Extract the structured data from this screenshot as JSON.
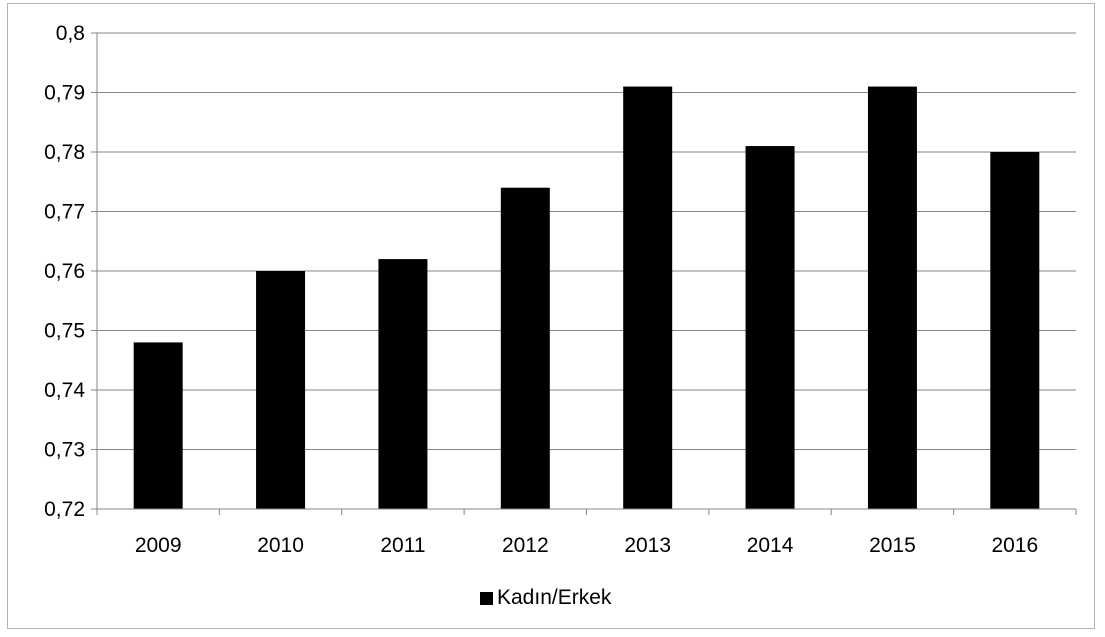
{
  "chart_data": {
    "type": "bar",
    "categories": [
      "2009",
      "2010",
      "2011",
      "2012",
      "2013",
      "2014",
      "2015",
      "2016"
    ],
    "series": [
      {
        "name": "Kadın/Erkek",
        "values": [
          0.748,
          0.76,
          0.762,
          0.774,
          0.791,
          0.781,
          0.791,
          0.78
        ]
      }
    ],
    "ylim": [
      0.72,
      0.8
    ],
    "y_ticks": [
      "0,72",
      "0,73",
      "0,74",
      "0,75",
      "0,76",
      "0,77",
      "0,78",
      "0,79",
      "0,8"
    ],
    "grid": true,
    "legend_position": "bottom",
    "bar_color": "#000000",
    "grid_color": "#868686"
  }
}
